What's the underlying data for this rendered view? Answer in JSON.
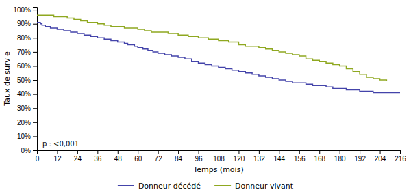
{
  "chart_data": {
    "type": "line",
    "title": "",
    "xlabel": "Temps (mois)",
    "ylabel": "Taux de survie",
    "annotation": "p : <0,001",
    "xlim": [
      0,
      216
    ],
    "ylim": [
      0.0,
      1.02
    ],
    "xticks": [
      0,
      12,
      24,
      36,
      48,
      60,
      72,
      84,
      96,
      108,
      120,
      132,
      144,
      156,
      168,
      180,
      192,
      204,
      216
    ],
    "yticks": [
      {
        "value": 0.0,
        "label": "0%"
      },
      {
        "value": 0.1,
        "label": "10%"
      },
      {
        "value": 0.2,
        "label": "20%"
      },
      {
        "value": 0.3,
        "label": "30%"
      },
      {
        "value": 0.4,
        "label": "40%"
      },
      {
        "value": 0.5,
        "label": "50%"
      },
      {
        "value": 0.6,
        "label": "60%"
      },
      {
        "value": 0.7,
        "label": "70%"
      },
      {
        "value": 0.8,
        "label": "80%"
      },
      {
        "value": 0.9,
        "label": "90%"
      },
      {
        "value": 1.0,
        "label": "100%"
      }
    ],
    "grid": false,
    "legend": "bottom",
    "line_style": "steps-post",
    "series": [
      {
        "name": "Donneur décédé",
        "color": "#4444aa",
        "x": [
          0,
          1,
          2,
          3,
          4,
          5,
          6,
          8,
          10,
          12,
          14,
          16,
          18,
          20,
          22,
          24,
          26,
          28,
          30,
          32,
          34,
          36,
          38,
          40,
          42,
          44,
          46,
          48,
          50,
          52,
          54,
          56,
          58,
          60,
          63,
          66,
          69,
          72,
          76,
          80,
          84,
          88,
          92,
          96,
          100,
          104,
          108,
          112,
          116,
          120,
          124,
          128,
          132,
          136,
          140,
          144,
          148,
          152,
          156,
          160,
          164,
          168,
          172,
          176,
          180,
          184,
          188,
          192,
          196,
          200,
          204,
          208,
          212,
          216
        ],
        "values": [
          0.91,
          0.91,
          0.9,
          0.89,
          0.89,
          0.88,
          0.88,
          0.87,
          0.87,
          0.86,
          0.86,
          0.85,
          0.85,
          0.84,
          0.84,
          0.83,
          0.83,
          0.82,
          0.82,
          0.81,
          0.81,
          0.8,
          0.8,
          0.79,
          0.79,
          0.78,
          0.78,
          0.77,
          0.77,
          0.76,
          0.75,
          0.75,
          0.74,
          0.73,
          0.72,
          0.71,
          0.7,
          0.69,
          0.68,
          0.67,
          0.66,
          0.65,
          0.63,
          0.62,
          0.61,
          0.6,
          0.59,
          0.58,
          0.57,
          0.56,
          0.55,
          0.54,
          0.53,
          0.52,
          0.51,
          0.5,
          0.49,
          0.48,
          0.48,
          0.47,
          0.46,
          0.46,
          0.45,
          0.44,
          0.44,
          0.43,
          0.43,
          0.42,
          0.42,
          0.41,
          0.41,
          0.41,
          0.41,
          0.41
        ]
      },
      {
        "name": "Donneur vivant",
        "color": "#8fa820",
        "x": [
          0,
          1,
          2,
          3,
          4,
          5,
          6,
          8,
          10,
          12,
          14,
          16,
          18,
          20,
          22,
          24,
          26,
          28,
          30,
          32,
          34,
          36,
          38,
          40,
          42,
          44,
          46,
          48,
          52,
          56,
          60,
          64,
          68,
          72,
          78,
          84,
          90,
          96,
          102,
          108,
          114,
          120,
          124,
          128,
          132,
          136,
          140,
          144,
          148,
          152,
          156,
          160,
          164,
          168,
          172,
          176,
          180,
          184,
          188,
          192,
          196,
          200,
          204,
          208
        ],
        "values": [
          0.96,
          0.96,
          0.96,
          0.96,
          0.96,
          0.96,
          0.96,
          0.96,
          0.95,
          0.95,
          0.95,
          0.95,
          0.94,
          0.94,
          0.93,
          0.93,
          0.92,
          0.92,
          0.91,
          0.91,
          0.91,
          0.9,
          0.9,
          0.89,
          0.89,
          0.88,
          0.88,
          0.88,
          0.87,
          0.87,
          0.86,
          0.85,
          0.84,
          0.84,
          0.83,
          0.82,
          0.81,
          0.8,
          0.79,
          0.78,
          0.77,
          0.75,
          0.74,
          0.74,
          0.73,
          0.72,
          0.71,
          0.7,
          0.69,
          0.68,
          0.67,
          0.65,
          0.64,
          0.63,
          0.62,
          0.61,
          0.6,
          0.58,
          0.56,
          0.54,
          0.52,
          0.51,
          0.5,
          0.49
        ]
      }
    ]
  }
}
